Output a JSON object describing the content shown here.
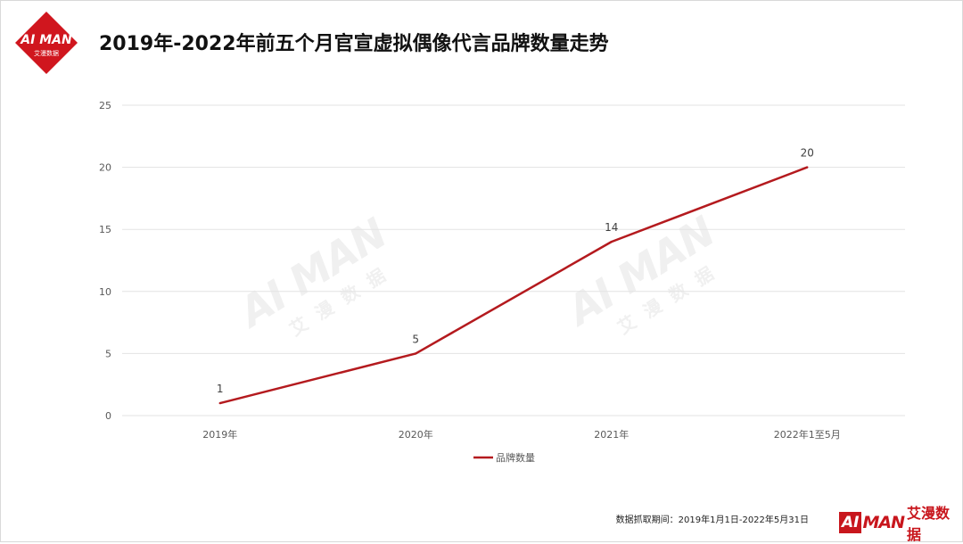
{
  "header": {
    "title": "2019年-2022年前五个月官宣虚拟偶像代言品牌数量走势"
  },
  "logo": {
    "text_main": "AI MAN",
    "text_sub": "艾漫数据",
    "icon": "aiman-diamond-logo"
  },
  "watermark": {
    "text_main": "AI MAN",
    "text_sub": "艾漫数据"
  },
  "footer": {
    "note": "数据抓取期间：2019年1月1日-2022年5月31日",
    "brand_ai": "AI",
    "brand_man": "MAN",
    "brand_cn": "艾漫数据"
  },
  "colors": {
    "line": "#b41a1e",
    "brand": "#c8161d",
    "grid": "#e3e3e3"
  },
  "chart_data": {
    "type": "line",
    "title": "2019年-2022年前五个月官宣虚拟偶像代言品牌数量走势",
    "categories": [
      "2019年",
      "2020年",
      "2021年",
      "2022年1至5月"
    ],
    "series": [
      {
        "name": "品牌数量",
        "values": [
          1,
          5,
          14,
          20
        ]
      }
    ],
    "yticks": [
      0,
      5,
      10,
      15,
      20,
      25
    ],
    "ylim": [
      0,
      25
    ],
    "grid": true,
    "legend": "bottom-center",
    "data_labels": true
  }
}
